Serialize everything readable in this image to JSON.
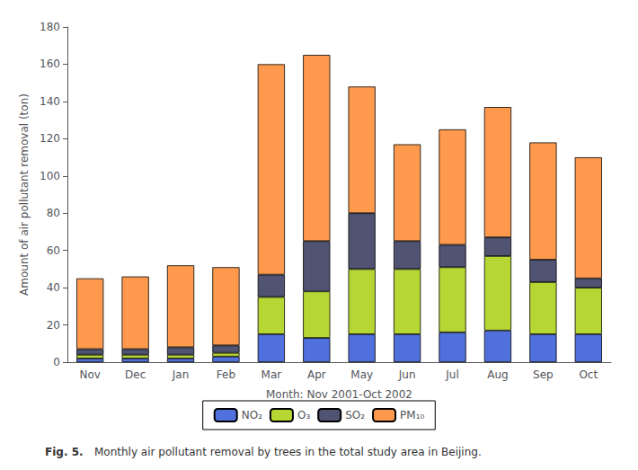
{
  "chart_data": {
    "type": "bar",
    "stacked": true,
    "categories": [
      "Nov",
      "Dec",
      "Jan",
      "Feb",
      "Mar",
      "Apr",
      "May",
      "Jun",
      "Jul",
      "Aug",
      "Sep",
      "Oct"
    ],
    "series": [
      {
        "name": "NO₂",
        "values": [
          2,
          2,
          2,
          3,
          15,
          13,
          15,
          15,
          16,
          17,
          15,
          15
        ]
      },
      {
        "name": "O₃",
        "values": [
          2,
          2,
          2,
          2,
          20,
          25,
          35,
          35,
          35,
          40,
          28,
          25
        ]
      },
      {
        "name": "SO₂",
        "values": [
          3,
          3,
          4,
          4,
          12,
          27,
          30,
          15,
          12,
          10,
          12,
          5
        ]
      },
      {
        "name": "PM₁₀",
        "values": [
          38,
          39,
          44,
          42,
          113,
          100,
          68,
          52,
          62,
          70,
          63,
          65
        ]
      }
    ],
    "xlabel": "Month: Nov 2001-Oct 2002",
    "ylabel": "Amount of air pollutant removal (ton)",
    "ylim": [
      0,
      180
    ],
    "yticks": [
      0,
      20,
      40,
      60,
      80,
      100,
      120,
      140,
      160,
      180
    ],
    "grid": false,
    "legend": "bottom",
    "annotations": [
      "Fig. 5.",
      "Monthly air pollutant removal by trees in the total study area in Beijing."
    ]
  }
}
